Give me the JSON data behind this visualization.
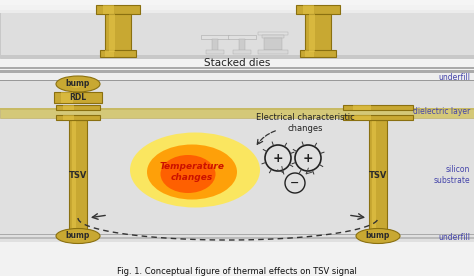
{
  "bg_color": "#f2f2f2",
  "title_text": "Fig. 1. Conceptual figure of thermal effects on TSV signal",
  "stacked_dies_label": "Stacked dies",
  "gold_color": "#C8A832",
  "gold_dark": "#8A7010",
  "gold_light": "#E8C84A",
  "text_color": "#222222",
  "blue_label": "#4444AA",
  "label_bump": "bump",
  "label_rdl": "RDL",
  "label_tsv": "TSV",
  "label_underfill": "underfill",
  "label_dielectric": "dielectric layer",
  "label_silicon": "silicon\nsubstrate",
  "label_temp": "Temperature\nchanges",
  "label_elec": "Electrical characteristic\nchanges"
}
